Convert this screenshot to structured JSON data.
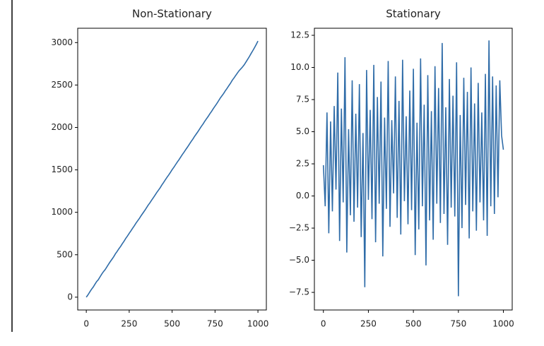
{
  "chart_data": [
    {
      "type": "line",
      "title": "Non-Stationary",
      "color": "#2f6ca8",
      "x": [
        0,
        10,
        20,
        30,
        40,
        50,
        60,
        70,
        80,
        90,
        100,
        110,
        120,
        130,
        140,
        150,
        160,
        170,
        180,
        190,
        200,
        210,
        220,
        230,
        240,
        250,
        260,
        270,
        280,
        290,
        300,
        310,
        320,
        330,
        340,
        350,
        360,
        370,
        380,
        390,
        400,
        410,
        420,
        430,
        440,
        450,
        460,
        470,
        480,
        490,
        500,
        510,
        520,
        530,
        540,
        550,
        560,
        570,
        580,
        590,
        600,
        610,
        620,
        630,
        640,
        650,
        660,
        670,
        680,
        690,
        700,
        710,
        720,
        730,
        740,
        750,
        760,
        770,
        780,
        790,
        800,
        810,
        820,
        830,
        840,
        850,
        860,
        870,
        880,
        890,
        900,
        910,
        920,
        930,
        940,
        950,
        960,
        970,
        980,
        990,
        1000
      ],
      "values": [
        0,
        28,
        61,
        92,
        118,
        151,
        183,
        206,
        239,
        272,
        301,
        325,
        357,
        389,
        420,
        448,
        478,
        512,
        540,
        571,
        598,
        631,
        660,
        693,
        721,
        752,
        781,
        813,
        842,
        874,
        902,
        930,
        962,
        991,
        1020,
        1051,
        1083,
        1110,
        1141,
        1170,
        1201,
        1232,
        1260,
        1288,
        1321,
        1350,
        1382,
        1412,
        1440,
        1470,
        1502,
        1530,
        1561,
        1592,
        1620,
        1651,
        1682,
        1710,
        1741,
        1770,
        1801,
        1832,
        1860,
        1892,
        1921,
        1950,
        1981,
        2012,
        2040,
        2072,
        2101,
        2130,
        2162,
        2190,
        2222,
        2251,
        2280,
        2312,
        2345,
        2372,
        2400,
        2432,
        2460,
        2491,
        2520,
        2555,
        2582,
        2611,
        2640,
        2668,
        2690,
        2712,
        2738,
        2770,
        2802,
        2835,
        2871,
        2905,
        2940,
        2978,
        3018
      ],
      "xlim": [
        -50,
        1049
      ],
      "xticks": [
        0,
        250,
        500,
        750,
        1000
      ],
      "ylim": [
        -151,
        3169
      ],
      "yticks": [
        0,
        500,
        1000,
        1500,
        2000,
        2500,
        3000
      ]
    },
    {
      "type": "line",
      "title": "Stationary",
      "color": "#2f6ca8",
      "x": [
        0,
        10,
        20,
        30,
        40,
        50,
        60,
        70,
        80,
        90,
        100,
        110,
        120,
        130,
        140,
        150,
        160,
        170,
        180,
        190,
        200,
        210,
        220,
        230,
        240,
        250,
        260,
        270,
        280,
        290,
        300,
        310,
        320,
        330,
        340,
        350,
        360,
        370,
        380,
        390,
        400,
        410,
        420,
        430,
        440,
        450,
        460,
        470,
        480,
        490,
        500,
        510,
        520,
        530,
        540,
        550,
        560,
        570,
        580,
        590,
        600,
        610,
        620,
        630,
        640,
        650,
        660,
        670,
        680,
        690,
        700,
        710,
        720,
        730,
        740,
        750,
        760,
        770,
        780,
        790,
        800,
        810,
        820,
        830,
        840,
        850,
        860,
        870,
        880,
        890,
        900,
        910,
        920,
        930,
        940,
        950,
        960,
        970,
        980,
        990,
        1000
      ],
      "values": [
        2.4,
        -0.8,
        6.5,
        -2.9,
        5.8,
        -1.2,
        7.0,
        0.5,
        9.6,
        -3.5,
        6.8,
        -0.5,
        10.8,
        -4.4,
        5.2,
        -1.5,
        9.0,
        -2.0,
        6.4,
        -0.9,
        8.7,
        -3.2,
        4.9,
        -7.1,
        9.8,
        -0.3,
        6.7,
        -1.8,
        10.2,
        -3.6,
        7.7,
        -0.6,
        8.9,
        -4.7,
        6.1,
        -1.0,
        10.5,
        -2.4,
        5.9,
        0.2,
        9.3,
        -1.7,
        7.4,
        -3.0,
        10.6,
        -0.4,
        6.2,
        -2.2,
        8.2,
        -1.1,
        9.9,
        -4.6,
        5.7,
        -2.6,
        10.7,
        -0.8,
        7.1,
        -5.4,
        9.4,
        -1.9,
        6.6,
        -3.4,
        10.1,
        -0.6,
        8.4,
        -2.1,
        11.9,
        -1.4,
        6.9,
        -3.8,
        9.1,
        -0.9,
        7.8,
        -1.6,
        10.4,
        -7.8,
        6.3,
        -2.5,
        9.2,
        -0.7,
        8.1,
        -3.3,
        10.0,
        -1.2,
        7.2,
        -2.7,
        8.8,
        -0.5,
        6.5,
        -1.9,
        9.5,
        -3.1,
        12.1,
        -0.8,
        9.3,
        -1.4,
        8.6,
        -0.1,
        9.0,
        4.7,
        3.6
      ],
      "xlim": [
        -50,
        1049
      ],
      "xticks": [
        0,
        250,
        500,
        750,
        1000
      ],
      "ylim": [
        -8.87,
        13.05
      ],
      "yticks": [
        {
          "value": -7.5,
          "label": "−7.5"
        },
        {
          "value": -5,
          "label": "−5.0"
        },
        {
          "value": -2.5,
          "label": "−2.5"
        },
        {
          "value": 0,
          "label": "0.0"
        },
        2.5,
        {
          "value": 5,
          "label": "5.0"
        },
        7.5,
        {
          "value": 10,
          "label": "10.0"
        },
        12.5
      ]
    }
  ]
}
